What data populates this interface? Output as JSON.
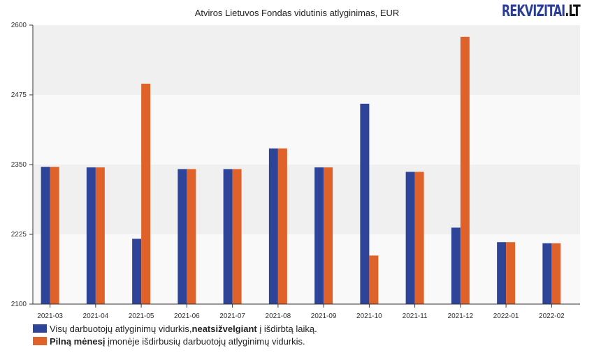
{
  "chart_data": {
    "type": "bar",
    "title": "Atviros Lietuvos Fondas vidutinis atlyginimas, EUR",
    "xlabel": "",
    "ylabel": "",
    "ylim": [
      2100,
      2600
    ],
    "yticks": [
      2100,
      2225,
      2350,
      2475,
      2600
    ],
    "categories": [
      "2021-03",
      "2021-04",
      "2021-05",
      "2021-06",
      "2021-07",
      "2021-08",
      "2021-09",
      "2021-10",
      "2021-11",
      "2021-12",
      "2022-01",
      "2022-02"
    ],
    "series": [
      {
        "name": "Visų darbuotojų atlyginimų vidurkis, neatsižvelgiant į išdirbtą laiką.",
        "color": "#2d4499",
        "values": [
          2346,
          2345,
          2217,
          2342,
          2342,
          2379,
          2345,
          2459,
          2337,
          2237,
          2211,
          2209
        ]
      },
      {
        "name": "Pilną mėnesį įmonėje išdirbusių darbuotojų atlyginimų vidurkis.",
        "color": "#e0622b",
        "values": [
          2346,
          2345,
          2495,
          2342,
          2342,
          2379,
          2345,
          2187,
          2337,
          2579,
          2211,
          2209
        ]
      }
    ],
    "grid": "alternating horizontal bands",
    "legend_position": "bottom-left"
  },
  "logo": {
    "main": "REKVIZITAI",
    "suffix": ".LT"
  },
  "legend": [
    {
      "pre": "Visų darbuotojų atlyginimų vidurkis, ",
      "bold": "neatsižvelgiant",
      "post": " į išdirbtą laiką."
    },
    {
      "pre": "",
      "bold": "Pilną mėnesį",
      "post": " įmonėje išdirbusių darbuotojų atlyginimų vidurkis."
    }
  ]
}
